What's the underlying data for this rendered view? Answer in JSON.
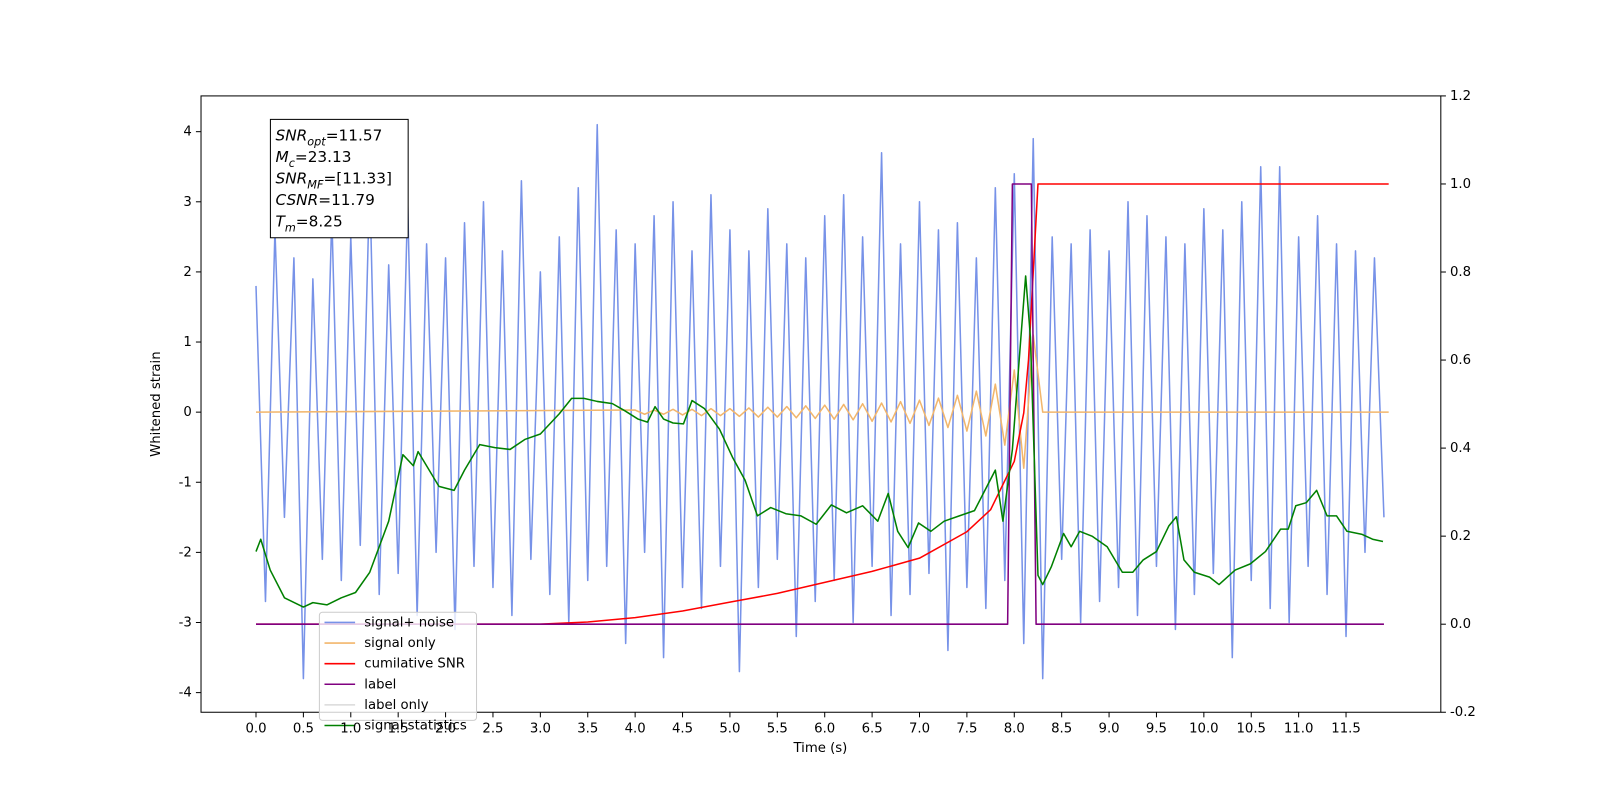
{
  "chart_data": {
    "type": "line",
    "xlabel": "Time (s)",
    "ylabel": "Whitened strain",
    "xlim": [
      -0.58,
      12.5
    ],
    "ylim": [
      -4.28,
      4.51
    ],
    "y2lim": [
      -0.2,
      1.2
    ],
    "xticks": [
      {
        "value": 0,
        "label": "0.0"
      },
      0.5,
      {
        "value": 1,
        "label": "1.0"
      },
      1.5,
      {
        "value": 2,
        "label": "2.0"
      },
      2.5,
      {
        "value": 3,
        "label": "3.0"
      },
      3.5,
      {
        "value": 4,
        "label": "4.0"
      },
      4.5,
      {
        "value": 5,
        "label": "5.0"
      },
      5.5,
      {
        "value": 6,
        "label": "6.0"
      },
      6.5,
      {
        "value": 7,
        "label": "7.0"
      },
      7.5,
      {
        "value": 8,
        "label": "8.0"
      },
      8.5,
      {
        "value": 9,
        "label": "9.0"
      },
      9.5,
      {
        "value": 10,
        "label": "10.0"
      },
      10.5,
      {
        "value": 11,
        "label": "11.0"
      },
      11.5
    ],
    "yticks": [
      -4,
      -3,
      -2,
      -1,
      0,
      1,
      2,
      3,
      4
    ],
    "y2ticks": [
      -0.2,
      {
        "value": 0,
        "label": "0.0"
      },
      0.2,
      0.4,
      0.6,
      0.8,
      {
        "value": 1,
        "label": "1.0"
      },
      1.2
    ],
    "legend": "lower left",
    "annotation": [
      {
        "base": "SNR",
        "sub": "opt",
        "text": "=11.57"
      },
      {
        "base": "M",
        "sub": "c",
        "text": "=23.13"
      },
      {
        "base": "SNR",
        "sub": "MF",
        "text": "=[11.33]"
      },
      {
        "base": "CSNR",
        "text": "=11.79"
      },
      {
        "base": "T",
        "sub": "m",
        "text": "=8.25"
      }
    ],
    "series": [
      {
        "name": "signal+ noise",
        "color": "#7792e8",
        "axis": "y",
        "x": [
          0,
          0.1,
          0.2,
          0.3,
          0.4,
          0.5,
          0.6,
          0.7,
          0.8,
          0.9,
          1,
          1.1,
          1.2,
          1.3,
          1.4,
          1.5,
          1.6,
          1.7,
          1.8,
          1.9,
          2,
          2.1,
          2.2,
          2.3,
          2.4,
          2.5,
          2.6,
          2.7,
          2.8,
          2.9,
          3,
          3.1,
          3.2,
          3.3,
          3.4,
          3.5,
          3.6,
          3.7,
          3.8,
          3.9,
          4,
          4.1,
          4.2,
          4.3,
          4.4,
          4.5,
          4.6,
          4.7,
          4.8,
          4.9,
          5,
          5.1,
          5.2,
          5.3,
          5.4,
          5.5,
          5.6,
          5.7,
          5.8,
          5.9,
          6,
          6.1,
          6.2,
          6.3,
          6.4,
          6.5,
          6.6,
          6.7,
          6.8,
          6.9,
          7,
          7.1,
          7.2,
          7.3,
          7.4,
          7.5,
          7.6,
          7.7,
          7.8,
          7.9,
          8,
          8.1,
          8.2,
          8.3,
          8.4,
          8.5,
          8.6,
          8.7,
          8.8,
          8.9,
          9,
          9.1,
          9.2,
          9.3,
          9.4,
          9.5,
          9.6,
          9.7,
          9.8,
          9.9,
          10,
          10.1,
          10.2,
          10.3,
          10.4,
          10.5,
          10.6,
          10.7,
          10.8,
          10.9,
          11,
          11.1,
          11.2,
          11.3,
          11.4,
          11.5,
          11.6,
          11.7,
          11.8,
          11.9
        ],
        "values": [
          1.8,
          -2.7,
          2.6,
          -1.5,
          2.2,
          -3.8,
          1.9,
          -2.1,
          2.8,
          -2.4,
          2.5,
          -1.9,
          3.3,
          -2.6,
          2.1,
          -2.3,
          3.0,
          -2.9,
          2.4,
          -2.0,
          2.2,
          -3.1,
          2.7,
          -2.2,
          3.0,
          -2.5,
          2.3,
          -2.9,
          3.3,
          -2.1,
          2.0,
          -2.6,
          2.5,
          -3.0,
          3.2,
          -2.4,
          4.1,
          -2.2,
          2.6,
          -3.3,
          2.4,
          -2.0,
          2.8,
          -3.5,
          3.0,
          -2.5,
          2.3,
          -2.8,
          3.1,
          -2.2,
          2.6,
          -3.7,
          2.3,
          -2.5,
          2.9,
          -2.1,
          2.4,
          -3.2,
          2.2,
          -2.7,
          2.8,
          -2.4,
          3.1,
          -3.0,
          2.5,
          -2.2,
          3.7,
          -2.9,
          2.4,
          -2.6,
          3.0,
          -2.3,
          2.6,
          -3.4,
          2.7,
          -2.5,
          2.2,
          -2.8,
          3.2,
          -2.4,
          3.4,
          -3.3,
          3.9,
          -3.8,
          2.5,
          -2.1,
          2.4,
          -3.0,
          2.6,
          -2.7,
          2.3,
          -2.5,
          3.0,
          -2.9,
          2.8,
          -2.2,
          2.5,
          -3.1,
          2.4,
          -2.6,
          2.9,
          -2.3,
          2.6,
          -3.5,
          3.0,
          -2.4,
          3.5,
          -2.8,
          3.5,
          -3.0,
          2.5,
          -2.2,
          2.8,
          -2.6,
          2.4,
          -3.2,
          2.3,
          -2.0,
          2.2,
          -1.5
        ]
      },
      {
        "name": "signal only",
        "color": "#f2b66c",
        "axis": "y",
        "x": [
          0,
          4,
          4.1,
          4.2,
          4.3,
          4.4,
          4.5,
          4.6,
          4.7,
          4.8,
          4.9,
          5,
          5.1,
          5.2,
          5.3,
          5.4,
          5.5,
          5.6,
          5.7,
          5.8,
          5.9,
          6,
          6.1,
          6.2,
          6.3,
          6.4,
          6.5,
          6.6,
          6.7,
          6.8,
          6.9,
          7,
          7.1,
          7.2,
          7.3,
          7.4,
          7.5,
          7.6,
          7.7,
          7.8,
          7.9,
          8,
          8.1,
          8.2,
          8.3,
          11.95
        ],
        "values": [
          0,
          0.03,
          -0.03,
          0.03,
          -0.03,
          0.04,
          -0.04,
          0.04,
          -0.05,
          0.05,
          -0.05,
          0.05,
          -0.06,
          0.06,
          -0.07,
          0.07,
          -0.07,
          0.08,
          -0.08,
          0.09,
          -0.09,
          0.1,
          -0.1,
          0.11,
          -0.11,
          0.12,
          -0.13,
          0.13,
          -0.14,
          0.15,
          -0.16,
          0.17,
          -0.19,
          0.2,
          -0.22,
          0.24,
          -0.27,
          0.3,
          -0.34,
          0.4,
          -0.47,
          0.6,
          -0.8,
          1.1,
          0,
          0
        ]
      },
      {
        "name": "cumilative SNR",
        "color": "#ff0000",
        "axis": "y2",
        "x": [
          0,
          3,
          3.5,
          4,
          4.5,
          5,
          5.5,
          6,
          6.5,
          7,
          7.5,
          7.75,
          8,
          8.1,
          8.15,
          8.2,
          8.25,
          11.95
        ],
        "values": [
          0,
          0,
          0.005,
          0.015,
          0.03,
          0.05,
          0.07,
          0.095,
          0.12,
          0.15,
          0.21,
          0.26,
          0.37,
          0.48,
          0.6,
          0.8,
          1,
          1
        ]
      },
      {
        "name": "label",
        "color": "#800080",
        "axis": "y2",
        "x": [
          0,
          7.93,
          7.98,
          8.18,
          8.23,
          11.9
        ],
        "values": [
          0,
          0,
          1,
          1,
          0,
          0
        ]
      },
      {
        "name": "label only",
        "color": "#d9d9d9",
        "axis": "y2",
        "x": [],
        "values": []
      },
      {
        "name": "signal statistics",
        "color": "#008000",
        "axis": "y2",
        "x": [
          0,
          0.05,
          0.15,
          0.3,
          0.5,
          0.6,
          0.75,
          0.9,
          1.05,
          1.2,
          1.4,
          1.55,
          1.66,
          1.71,
          1.93,
          2.09,
          2.2,
          2.36,
          2.52,
          2.68,
          2.84,
          3,
          3.2,
          3.33,
          3.46,
          3.6,
          3.76,
          3.89,
          4.03,
          4.13,
          4.21,
          4.3,
          4.4,
          4.51,
          4.6,
          4.73,
          4.89,
          5.03,
          5.16,
          5.29,
          5.43,
          5.59,
          5.75,
          5.91,
          6.07,
          6.23,
          6.4,
          6.56,
          6.67,
          6.77,
          6.88,
          6.99,
          7.12,
          7.26,
          7.42,
          7.58,
          7.69,
          7.8,
          7.88,
          7.98,
          8.07,
          8.12,
          8.17,
          8.25,
          8.3,
          8.39,
          8.52,
          8.6,
          8.69,
          8.82,
          8.98,
          9.14,
          9.25,
          9.36,
          9.5,
          9.63,
          9.71,
          9.79,
          9.9,
          10.06,
          10.16,
          10.33,
          10.49,
          10.65,
          10.81,
          10.89,
          10.97,
          11.08,
          11.19,
          11.3,
          11.4,
          11.51,
          11.67,
          11.78,
          11.89
        ],
        "values": [
          0.165,
          0.193,
          0.123,
          0.06,
          0.039,
          0.049,
          0.044,
          0.06,
          0.072,
          0.118,
          0.234,
          0.385,
          0.36,
          0.392,
          0.313,
          0.304,
          0.35,
          0.408,
          0.401,
          0.397,
          0.42,
          0.432,
          0.478,
          0.513,
          0.513,
          0.506,
          0.501,
          0.485,
          0.466,
          0.459,
          0.494,
          0.466,
          0.457,
          0.455,
          0.508,
          0.49,
          0.443,
          0.378,
          0.327,
          0.246,
          0.265,
          0.251,
          0.246,
          0.227,
          0.271,
          0.253,
          0.269,
          0.234,
          0.297,
          0.211,
          0.174,
          0.23,
          0.211,
          0.234,
          0.246,
          0.258,
          0.304,
          0.35,
          0.234,
          0.397,
          0.652,
          0.791,
          0.652,
          0.111,
          0.09,
          0.13,
          0.206,
          0.176,
          0.211,
          0.2,
          0.176,
          0.118,
          0.118,
          0.146,
          0.165,
          0.223,
          0.244,
          0.146,
          0.118,
          0.107,
          0.09,
          0.123,
          0.137,
          0.165,
          0.216,
          0.216,
          0.269,
          0.276,
          0.304,
          0.246,
          0.246,
          0.211,
          0.204,
          0.193,
          0.188
        ]
      }
    ]
  }
}
